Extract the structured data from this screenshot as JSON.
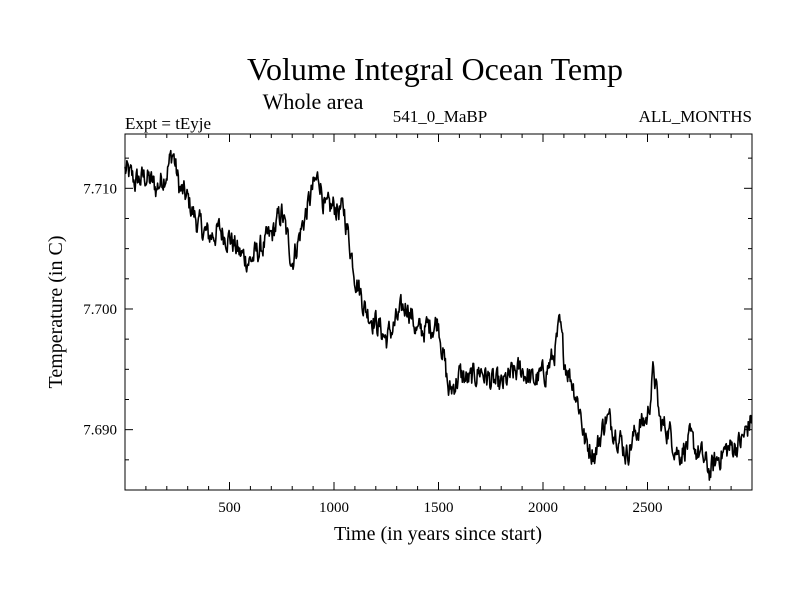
{
  "chart_data": {
    "type": "line",
    "title": "Volume Integral Ocean Temp",
    "subtitle": "Whole area",
    "annotations": {
      "left": "Expt = tEyje",
      "center": "541_0_MaBP",
      "right": "ALL_MONTHS"
    },
    "xlabel": "Time (in years since start)",
    "ylabel": "Temperature (in C)",
    "xlim": [
      0,
      3000
    ],
    "ylim": [
      7.685,
      7.7145
    ],
    "xticks": [
      500,
      1000,
      1500,
      2000,
      2500
    ],
    "xtick_labels": [
      "500",
      "1000",
      "1500",
      "2000",
      "2500"
    ],
    "yticks": [
      7.69,
      7.7,
      7.71
    ],
    "ytick_labels": [
      "7.690",
      "7.700",
      "7.710"
    ],
    "grid": false,
    "series": [
      {
        "name": "Volume integral ocean temperature",
        "color": "#000000",
        "x": [
          0,
          50,
          100,
          150,
          200,
          230,
          260,
          300,
          350,
          400,
          450,
          500,
          550,
          600,
          650,
          700,
          750,
          800,
          850,
          900,
          930,
          960,
          1000,
          1050,
          1100,
          1150,
          1200,
          1250,
          1300,
          1350,
          1400,
          1450,
          1500,
          1550,
          1600,
          1650,
          1700,
          1750,
          1800,
          1850,
          1900,
          1950,
          2000,
          2050,
          2080,
          2100,
          2150,
          2180,
          2200,
          2250,
          2300,
          2350,
          2400,
          2450,
          2500,
          2530,
          2560,
          2600,
          2650,
          2700,
          2750,
          2800,
          2850,
          2900,
          2950,
          3000
        ],
        "values": [
          7.7115,
          7.7105,
          7.711,
          7.71,
          7.7115,
          7.713,
          7.71,
          7.709,
          7.707,
          7.706,
          7.7065,
          7.706,
          7.7045,
          7.704,
          7.705,
          7.706,
          7.708,
          7.704,
          7.707,
          7.71,
          7.711,
          7.708,
          7.7085,
          7.708,
          7.703,
          7.7,
          7.699,
          7.6975,
          7.699,
          7.7005,
          7.698,
          7.6985,
          7.699,
          7.693,
          7.6945,
          7.694,
          7.695,
          7.694,
          7.6935,
          7.6945,
          7.695,
          7.694,
          7.6945,
          7.696,
          7.6985,
          7.696,
          7.6935,
          7.6915,
          7.689,
          7.688,
          7.691,
          7.69,
          7.688,
          7.69,
          7.691,
          7.695,
          7.6905,
          7.69,
          7.688,
          7.689,
          7.688,
          7.6865,
          7.688,
          7.6885,
          7.689,
          7.691
        ]
      }
    ]
  }
}
